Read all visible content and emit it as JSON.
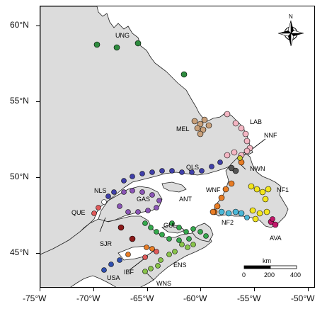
{
  "axes": {
    "lat_labels": [
      "60°N",
      "55°N",
      "50°N",
      "45°N"
    ],
    "lon_labels": [
      "-75°W",
      "-70°W",
      "-65°W",
      "-60°W",
      "-55°W",
      "-50°W"
    ]
  },
  "regions": [
    "UNG",
    "LAB",
    "MEL",
    "NNF",
    "QLS",
    "NWN",
    "NLS",
    "GAS",
    "ANT",
    "WNF",
    "NF1",
    "QUE",
    "GUL",
    "NF2",
    "SJR",
    "AVA",
    "IBF",
    "ENS",
    "USA",
    "WNS"
  ],
  "compass": {
    "north_label": "N"
  },
  "scale_bar": {
    "unit": "km",
    "ticks": [
      "0",
      "200",
      "400"
    ]
  },
  "colors": {
    "land": "#dcdcdc",
    "water": "#ffffff",
    "UNG": "#2e8b3e",
    "LAB": "#f4b6c3",
    "MEL": "#c8a07a",
    "NNF": "#f4b6c3",
    "QLS": "#3f3fa8",
    "NWN": "#555555",
    "NLS": "#3f3fa8",
    "GAS": "#8a55b5",
    "ANT": "#8a55b5",
    "WNF": "#e87d26",
    "NF1": "#f2e51d",
    "QUE": "#e05a5a",
    "GUL": "#34a84c",
    "NF2": "#4bb8d8",
    "SJR": "#8b1a1a",
    "AVA": "#c2186b",
    "IBF": "#e87d26",
    "ENS": "#88c34a",
    "USA": "#3050b0",
    "WNS": "#88c34a"
  }
}
